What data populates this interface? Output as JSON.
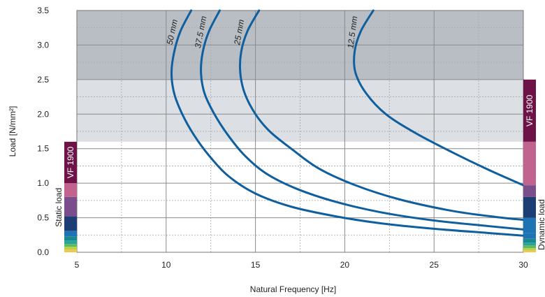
{
  "chart_data": {
    "type": "line",
    "title": "",
    "xlabel": "Natural Frequency  [Hz]",
    "ylabel": "Load  [N/mm²]",
    "xlim": [
      5,
      30
    ],
    "ylim": [
      0,
      3.5
    ],
    "x_ticks": [
      "5",
      "10",
      "15",
      "20",
      "25",
      "30"
    ],
    "y_ticks": [
      "0.0",
      "0.5",
      "1.0",
      "1.5",
      "2.0",
      "2.5",
      "3.0",
      "3.5"
    ],
    "grid": true,
    "bands": [
      {
        "from": 1.6,
        "to": 2.5,
        "color": "#dcdfe3"
      },
      {
        "from": 2.5,
        "to": 3.5,
        "color": "#b9bec4"
      }
    ],
    "line_color": "#0f5f9e",
    "series": [
      {
        "name": "50 mm",
        "points": [
          [
            11.4,
            3.5
          ],
          [
            10.8,
            3.2
          ],
          [
            10.45,
            2.9
          ],
          [
            10.3,
            2.6
          ],
          [
            10.45,
            2.3
          ],
          [
            10.9,
            2.0
          ],
          [
            11.55,
            1.7
          ],
          [
            12.4,
            1.4
          ],
          [
            13.5,
            1.1
          ],
          [
            15.0,
            0.85
          ],
          [
            17.0,
            0.66
          ],
          [
            19.5,
            0.52
          ],
          [
            22.0,
            0.42
          ],
          [
            25.0,
            0.34
          ],
          [
            28.0,
            0.28
          ],
          [
            30.0,
            0.24
          ]
        ]
      },
      {
        "name": "37.5 mm",
        "points": [
          [
            13.0,
            3.5
          ],
          [
            12.4,
            3.2
          ],
          [
            12.05,
            2.9
          ],
          [
            11.95,
            2.6
          ],
          [
            12.15,
            2.3
          ],
          [
            12.7,
            2.0
          ],
          [
            13.45,
            1.7
          ],
          [
            14.4,
            1.4
          ],
          [
            15.6,
            1.14
          ],
          [
            17.3,
            0.92
          ],
          [
            19.5,
            0.73
          ],
          [
            22.0,
            0.58
          ],
          [
            25.0,
            0.46
          ],
          [
            28.0,
            0.38
          ],
          [
            30.0,
            0.33
          ]
        ]
      },
      {
        "name": "25 mm",
        "points": [
          [
            15.2,
            3.5
          ],
          [
            14.55,
            3.2
          ],
          [
            14.2,
            2.9
          ],
          [
            14.15,
            2.6
          ],
          [
            14.4,
            2.3
          ],
          [
            15.0,
            2.0
          ],
          [
            15.8,
            1.75
          ],
          [
            17.0,
            1.5
          ],
          [
            18.5,
            1.22
          ],
          [
            20.5,
            0.98
          ],
          [
            23.0,
            0.77
          ],
          [
            26.0,
            0.6
          ],
          [
            28.5,
            0.51
          ],
          [
            30.0,
            0.47
          ]
        ]
      },
      {
        "name": "12.5 mm",
        "points": [
          [
            21.6,
            3.5
          ],
          [
            20.9,
            3.2
          ],
          [
            20.55,
            2.9
          ],
          [
            20.6,
            2.6
          ],
          [
            21.2,
            2.3
          ],
          [
            22.3,
            2.0
          ],
          [
            24.0,
            1.72
          ],
          [
            26.0,
            1.45
          ],
          [
            28.0,
            1.2
          ],
          [
            30.0,
            0.97
          ]
        ]
      }
    ],
    "side_bars": [
      {
        "label": "Static load",
        "product_label": "VF 1900",
        "segments": [
          {
            "from": 0.0,
            "to": 0.04,
            "color": "#f2c84a"
          },
          {
            "from": 0.04,
            "to": 0.08,
            "color": "#b5d34a"
          },
          {
            "from": 0.08,
            "to": 0.12,
            "color": "#5fb95f"
          },
          {
            "from": 0.12,
            "to": 0.17,
            "color": "#26a39a"
          },
          {
            "from": 0.17,
            "to": 0.23,
            "color": "#16888f"
          },
          {
            "from": 0.23,
            "to": 0.31,
            "color": "#1e73b4"
          },
          {
            "from": 0.31,
            "to": 0.52,
            "color": "#1d3d75"
          },
          {
            "from": 0.52,
            "to": 0.8,
            "color": "#7a4e8a"
          },
          {
            "from": 0.8,
            "to": 1.0,
            "color": "#c2638f"
          },
          {
            "from": 1.0,
            "to": 1.6,
            "color": "#6d1347"
          }
        ]
      },
      {
        "label": "Dynamic load",
        "product_label": "VF 1900",
        "segments": [
          {
            "from": 0.0,
            "to": 0.03,
            "color": "#f2c84a"
          },
          {
            "from": 0.03,
            "to": 0.06,
            "color": "#b5d34a"
          },
          {
            "from": 0.06,
            "to": 0.1,
            "color": "#5fb95f"
          },
          {
            "from": 0.1,
            "to": 0.14,
            "color": "#26a39a"
          },
          {
            "from": 0.14,
            "to": 0.2,
            "color": "#16888f"
          },
          {
            "from": 0.2,
            "to": 0.28,
            "color": "#1e73b4"
          },
          {
            "from": 0.28,
            "to": 0.5,
            "color": "#1e73b4"
          },
          {
            "from": 0.5,
            "to": 0.8,
            "color": "#1d3d75"
          },
          {
            "from": 0.8,
            "to": 0.97,
            "color": "#7a4e8a"
          },
          {
            "from": 0.97,
            "to": 1.6,
            "color": "#c2638f"
          },
          {
            "from": 1.6,
            "to": 2.5,
            "color": "#6d1347"
          }
        ]
      }
    ]
  }
}
